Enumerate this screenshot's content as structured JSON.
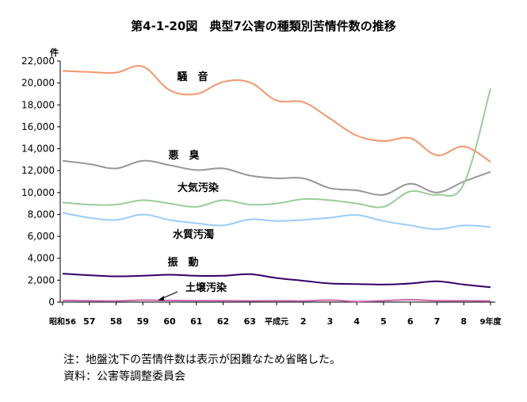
{
  "title": "第4-1-20図　典型7公害の種類別苦情件数の推移",
  "unit_label": "件",
  "notes": [
    "注：地盤沈下の苦情件数は表示が困難なため省略した。",
    "資料：公害等調整委員会"
  ],
  "chart_data": {
    "type": "line",
    "title": "第4-1-20図　典型7公害の種類別苦情件数の推移",
    "xlabel": "",
    "ylabel": "件",
    "ylim": [
      0,
      22000
    ],
    "yticks": [
      0,
      2000,
      4000,
      6000,
      8000,
      10000,
      12000,
      14000,
      16000,
      18000,
      20000,
      22000
    ],
    "ytick_labels": [
      "0",
      "2,000",
      "4,000",
      "6,000",
      "8,000",
      "10,000",
      "12,000",
      "14,000",
      "16,000",
      "18,000",
      "20,000",
      "22,000"
    ],
    "categories": [
      "昭和56",
      "57",
      "58",
      "59",
      "60",
      "61",
      "62",
      "63",
      "平成元",
      "2",
      "3",
      "4",
      "5",
      "6",
      "7",
      "8",
      "9年度"
    ],
    "grid": false,
    "legend": "inline labels",
    "series": [
      {
        "name": "騒　音",
        "color": "#f4966a",
        "values": [
          21100,
          21000,
          20950,
          21500,
          19350,
          19000,
          20100,
          20050,
          18400,
          18250,
          16750,
          15200,
          14700,
          14950,
          13400,
          14200,
          12800
        ]
      },
      {
        "name": "悪　臭",
        "color": "#969696",
        "values": [
          12900,
          12600,
          12200,
          12900,
          12500,
          12050,
          12200,
          11550,
          11300,
          11300,
          10400,
          10200,
          9800,
          10800,
          10000,
          11000,
          11900
        ]
      },
      {
        "name": "大気汚染",
        "color": "#99cc99",
        "values": [
          9100,
          8900,
          8900,
          9300,
          9000,
          8700,
          9300,
          8900,
          9000,
          9400,
          9300,
          9000,
          8700,
          10100,
          9800,
          10800,
          19500
        ]
      },
      {
        "name": "水質汚濁",
        "color": "#99ccff",
        "values": [
          8150,
          7700,
          7500,
          8000,
          7500,
          7200,
          7000,
          7550,
          7400,
          7500,
          7700,
          7950,
          7400,
          7000,
          6650,
          7000,
          6850
        ]
      },
      {
        "name": "振　動",
        "color": "#330066",
        "values": [
          2600,
          2450,
          2350,
          2400,
          2500,
          2400,
          2400,
          2550,
          2200,
          1950,
          1700,
          1650,
          1600,
          1700,
          1900,
          1600,
          1350
        ]
      },
      {
        "name": "土壌汚染",
        "color": "#cc66aa",
        "values": [
          150,
          120,
          100,
          180,
          150,
          130,
          120,
          110,
          130,
          100,
          180,
          60,
          130,
          220,
          120,
          120,
          100
        ]
      }
    ]
  }
}
